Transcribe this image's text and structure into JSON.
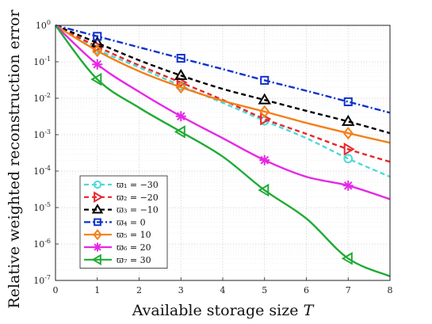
{
  "chart_data": {
    "type": "line",
    "title": "",
    "xlabel": "Available storage size T",
    "ylabel": "Relative weighted reconstruction error",
    "xlim": [
      0,
      8
    ],
    "ylim_log10": [
      -7,
      0
    ],
    "yscale": "log",
    "grid": true,
    "legend_position": "bottom-left",
    "x_ticks": [
      "0",
      "1",
      "2",
      "3",
      "4",
      "5",
      "6",
      "7",
      "8"
    ],
    "y_ticks": [
      {
        "base": "10",
        "exp": "0"
      },
      {
        "base": "10",
        "exp": "-1"
      },
      {
        "base": "10",
        "exp": "-2"
      },
      {
        "base": "10",
        "exp": "-3"
      },
      {
        "base": "10",
        "exp": "-4"
      },
      {
        "base": "10",
        "exp": "-5"
      },
      {
        "base": "10",
        "exp": "-6"
      },
      {
        "base": "10",
        "exp": "-7"
      }
    ],
    "x": [
      0,
      1,
      2,
      3,
      4,
      5,
      6,
      7,
      8
    ],
    "series": [
      {
        "name": "ϖ₁ = −30",
        "color": "#4dd9d9",
        "dash": "dashed",
        "marker": "circle",
        "marker_x": [
          1,
          3,
          5,
          7
        ],
        "y": [
          1.0,
          0.22,
          0.07,
          0.022,
          0.0075,
          0.0024,
          0.0008,
          0.00022,
          7e-05
        ]
      },
      {
        "name": "ϖ₂ = −20",
        "color": "#e8262b",
        "dash": "dashed",
        "marker": "triangle-right",
        "marker_x": [
          1,
          3,
          5,
          7
        ],
        "y": [
          1.0,
          0.26,
          0.08,
          0.027,
          0.009,
          0.0027,
          0.00105,
          0.0004,
          0.00018
        ]
      },
      {
        "name": "ϖ₃ = −10",
        "color": "#000000",
        "dash": "dashed",
        "marker": "triangle-up",
        "marker_x": [
          1,
          3,
          5,
          7
        ],
        "y": [
          1.0,
          0.33,
          0.11,
          0.042,
          0.018,
          0.009,
          0.0045,
          0.0023,
          0.0011
        ]
      },
      {
        "name": "ϖ₄ = 0",
        "color": "#1133cc",
        "dash": "dashdot",
        "marker": "square",
        "marker_x": [
          1,
          3,
          5,
          7
        ],
        "y": [
          1.0,
          0.5,
          0.25,
          0.125,
          0.063,
          0.031,
          0.016,
          0.008,
          0.004
        ]
      },
      {
        "name": "ϖ₅ = 10",
        "color": "#f57f17",
        "dash": "solid",
        "marker": "diamond",
        "marker_x": [
          1,
          3,
          5,
          7
        ],
        "y": [
          1.0,
          0.2,
          0.055,
          0.02,
          0.0085,
          0.0043,
          0.0021,
          0.0011,
          0.0006
        ]
      },
      {
        "name": "ϖ₆ = 20",
        "color": "#e628e6",
        "dash": "solid",
        "marker": "asterisk",
        "marker_x": [
          1,
          3,
          5,
          7
        ],
        "y": [
          1.0,
          0.085,
          0.015,
          0.0032,
          0.0008,
          0.0002,
          7e-05,
          4e-05,
          1.7e-05
        ]
      },
      {
        "name": "ϖ₇ = 30",
        "color": "#1fab34",
        "dash": "solid",
        "marker": "triangle-left",
        "marker_x": [
          1,
          3,
          5,
          7
        ],
        "y": [
          1.0,
          0.033,
          0.0055,
          0.0012,
          0.00025,
          3e-05,
          5e-06,
          4e-07,
          1.3e-07
        ]
      }
    ]
  }
}
